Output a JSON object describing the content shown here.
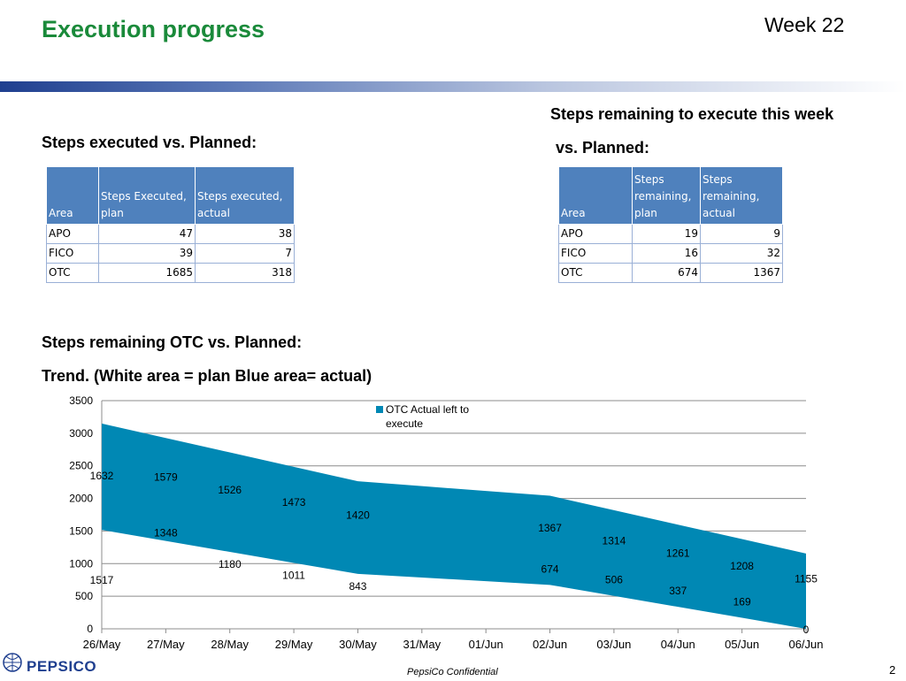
{
  "header": {
    "title": "Execution progress",
    "week": "Week 22"
  },
  "left_section": {
    "heading": "Steps executed vs. Planned:",
    "table": {
      "columns": [
        "Area",
        "Steps Executed, plan",
        "Steps executed, actual"
      ],
      "rows": [
        [
          "APO",
          "47",
          "38"
        ],
        [
          "FICO",
          "39",
          "7"
        ],
        [
          "OTC",
          "1685",
          "318"
        ]
      ]
    }
  },
  "right_section": {
    "heading_line1": "Steps remaining to execute this week",
    "heading_line2": "vs. Planned:",
    "table": {
      "columns": [
        "Area",
        "Steps remaining, plan",
        "Steps remaining, actual"
      ],
      "rows": [
        [
          "APO",
          "19",
          "9"
        ],
        [
          "FICO",
          "16",
          "32"
        ],
        [
          "OTC",
          "674",
          "1367"
        ]
      ]
    }
  },
  "trend_section": {
    "heading_line1": "Steps remaining OTC vs. Planned:",
    "heading_line2": "Trend. (White area = plan Blue area= actual)"
  },
  "chart_data": {
    "type": "area",
    "categories": [
      "26/May",
      "27/May",
      "28/May",
      "29/May",
      "30/May",
      "31/May",
      "01/Jun",
      "02/Jun",
      "03/Jun",
      "04/Jun",
      "05/Jun",
      "06/Jun"
    ],
    "series": [
      {
        "name": "",
        "role": "plan (white area)",
        "values": [
          1517,
          1348,
          1180,
          1011,
          843,
          null,
          null,
          674,
          506,
          337,
          169,
          0
        ],
        "data_labels": [
          "1517",
          "1348",
          "1180",
          "1011",
          "843",
          null,
          null,
          "674",
          "506",
          "337",
          "169",
          "0"
        ]
      },
      {
        "name": "OTC Actual left to execute",
        "role": "actual (blue area, stacked on plan)",
        "values": [
          1632,
          1579,
          1526,
          1473,
          1420,
          null,
          null,
          1367,
          1314,
          1261,
          1208,
          1155
        ],
        "data_labels": [
          "1632",
          "1579",
          "1526",
          "1473",
          "1420",
          null,
          null,
          "1367",
          "1314",
          "1261",
          "1208",
          "1155"
        ]
      }
    ],
    "stacked": true,
    "ylim": [
      0,
      3500
    ],
    "yticks": [
      "0",
      "500",
      "1000",
      "1500",
      "2000",
      "2500",
      "3000",
      "3500"
    ],
    "grid": true,
    "legend_position": "top",
    "fill_color": "#0088b4",
    "grid_color": "#8c8c8c"
  },
  "footer": {
    "confidential": "PepsiCo Confidential",
    "page": "2",
    "logo": "PEPSICO"
  }
}
